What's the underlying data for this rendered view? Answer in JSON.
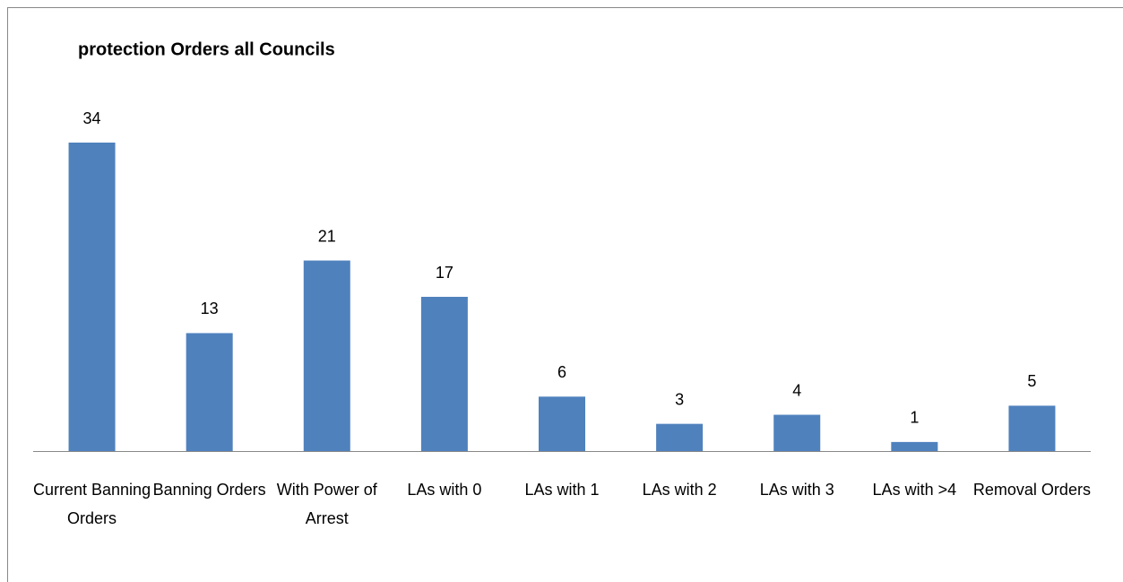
{
  "chart_data": {
    "type": "bar",
    "title": "protection Orders all Councils",
    "categories": [
      "Current Banning Orders",
      "Banning Orders",
      "With Power of Arrest",
      "LAs with 0",
      "LAs with 1",
      "LAs with 2",
      "LAs with 3",
      "LAs with >4",
      "Removal Orders"
    ],
    "values": [
      34,
      13,
      21,
      17,
      6,
      3,
      4,
      1,
      5
    ],
    "color": "#4f81bd"
  }
}
